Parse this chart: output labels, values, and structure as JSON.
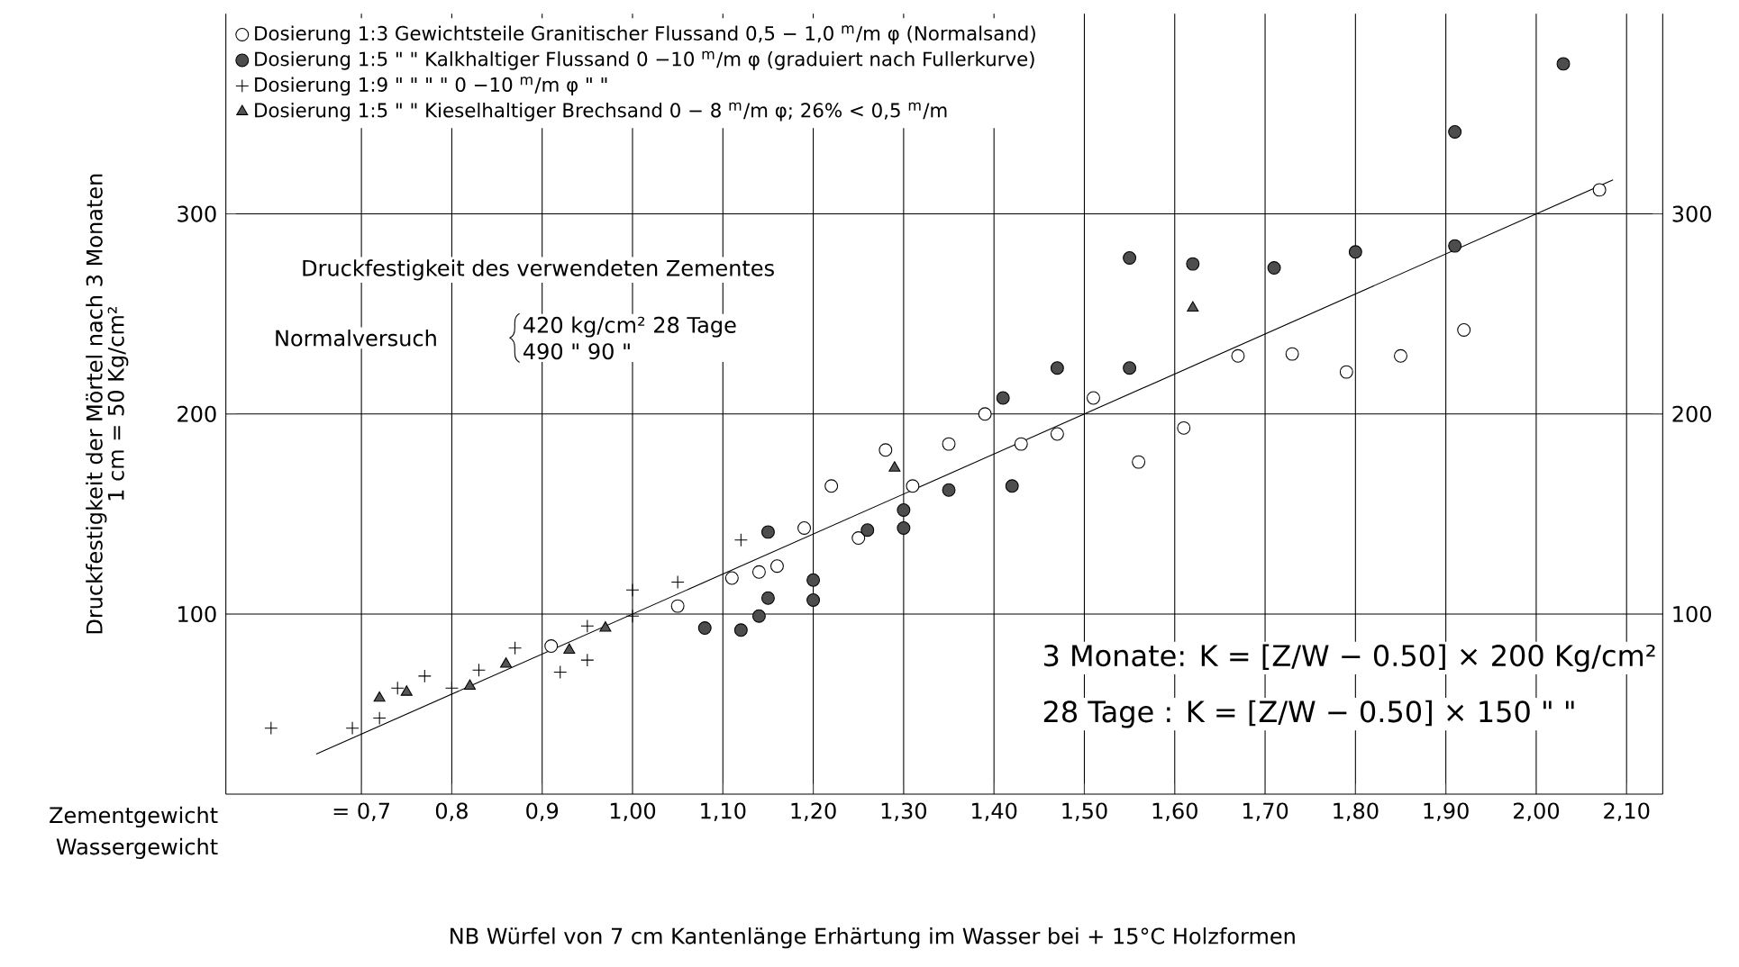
{
  "chart_data": {
    "type": "scatter",
    "xlabel": "Zementgewicht",
    "ylabel": "Druckfestigkeit der Mörtel nach 3 Monaten",
    "xlim": [
      0.55,
      2.14
    ],
    "ylim": [
      10,
      400
    ],
    "y2lim": [
      10,
      400
    ],
    "xticks": [
      {
        "value": 0.7,
        "label": "= 0,7"
      },
      {
        "value": 0.8,
        "label": "0,8"
      },
      {
        "value": 0.9,
        "label": "0,9"
      },
      {
        "value": 1.0,
        "label": "1,00"
      },
      {
        "value": 1.1,
        "label": "1,10"
      },
      {
        "value": 1.2,
        "label": "1,20"
      },
      {
        "value": 1.3,
        "label": "1,30"
      },
      {
        "value": 1.4,
        "label": "1,40"
      },
      {
        "value": 1.5,
        "label": "1,50"
      },
      {
        "value": 1.6,
        "label": "1,60"
      },
      {
        "value": 1.7,
        "label": "1,70"
      },
      {
        "value": 1.8,
        "label": "1,80"
      },
      {
        "value": 1.9,
        "label": "1,90"
      },
      {
        "value": 2.0,
        "label": "2,00"
      },
      {
        "value": 2.1,
        "label": "2,10"
      }
    ],
    "yticks": [
      100,
      200,
      300
    ],
    "y2ticks": [
      100,
      200,
      300
    ],
    "grid": true,
    "legend": "top left",
    "series": [
      {
        "name": "Dosierung 1:3 Gewichtsteile Granitischer Flussand 0,5 − 1,0 $^{m}$/m φ (Normalsand)",
        "marker": "circle",
        "color": "#ffffff",
        "x": [
          0.91,
          1.05,
          1.11,
          1.14,
          1.16,
          1.19,
          1.22,
          1.25,
          1.28,
          1.31,
          1.35,
          1.39,
          1.43,
          1.47,
          1.51,
          1.56,
          1.61,
          1.67,
          1.73,
          1.79,
          1.85,
          1.92,
          2.07
        ],
        "values": [
          84,
          104,
          118,
          121,
          124,
          143,
          164,
          138,
          182,
          164,
          185,
          200,
          185,
          190,
          208,
          176,
          193,
          229,
          230,
          221,
          229,
          242,
          312
        ]
      },
      {
        "name": "Dosierung 1:5 \" \" Kalkhaltiger Flussand 0 −10 $^{m}$/m φ (graduiert nach Fullerkurve)",
        "marker": "circle",
        "color": "#4d4d4d",
        "x": [
          1.08,
          1.12,
          1.14,
          1.15,
          1.15,
          1.2,
          1.2,
          1.26,
          1.3,
          1.3,
          1.35,
          1.42,
          1.41,
          1.47,
          1.55,
          1.55,
          1.62,
          1.71,
          1.8,
          1.91,
          1.91,
          2.03
        ],
        "values": [
          93,
          92,
          99,
          108,
          141,
          117,
          107,
          142,
          152,
          143,
          162,
          164,
          208,
          223,
          223,
          278,
          275,
          273,
          281,
          284,
          341,
          375
        ]
      },
      {
        "name": "Dosierung 1:9 \" \" \" \" 0 −10 $^{m}$/m φ \" \"",
        "marker": "cross",
        "color": "#000000",
        "x": [
          0.6,
          0.69,
          0.72,
          0.74,
          0.77,
          0.8,
          0.83,
          0.87,
          0.92,
          0.95,
          0.95,
          1.0,
          1.0,
          1.05,
          1.12
        ],
        "values": [
          43,
          43,
          48,
          63,
          69,
          63,
          72,
          83,
          71,
          94,
          77,
          112,
          99,
          116,
          137
        ]
      },
      {
        "name": "Dosierung 1:5 \" \" Kieselhaltiger Brechsand 0 − 8 $^{m}$/m φ; 26% < 0,5 $^{m}$/m",
        "marker": "triangle",
        "color": "#555555",
        "x": [
          0.72,
          0.75,
          0.82,
          0.86,
          0.93,
          0.97,
          1.29,
          1.62
        ],
        "values": [
          58,
          61,
          64,
          75,
          82,
          93,
          173,
          253
        ]
      },
      {
        "type": "line",
        "marker": "none",
        "line_style": "solid",
        "color": "#000000",
        "x": [
          0.65,
          2.085
        ],
        "values": [
          30,
          317
        ]
      }
    ],
    "annotations": [
      "Wassergewicht",
      "1 cm = 50 Kg/cm²",
      "Druckfestigkeit des verwendeten Zementes",
      "Normalversuch",
      "420 kg/cm²   28 Tage",
      "490  \"      90  \"",
      "3 Monate: K = [Z/W − 0.50] × 200 Kg/cm²",
      "28 Tage  : K = [Z/W − 0.50] × 150  \"  \"",
      "NB Würfel von 7 cm Kantenlänge  Erhärtung im Wasser bei + 15°C  Holzformen"
    ]
  }
}
